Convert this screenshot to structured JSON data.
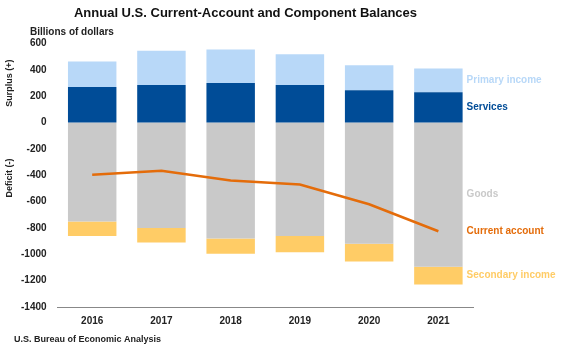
{
  "chart_data": {
    "type": "bar",
    "title": "Annual U.S. Current-Account and Component Balances",
    "ylabel": "Billions of dollars",
    "annotations": [
      "Surplus (+)",
      "Deficit (-)",
      "U.S. Bureau of Economic Analysis"
    ],
    "categories": [
      "2016",
      "2017",
      "2018",
      "2019",
      "2020",
      "2021"
    ],
    "series": [
      {
        "name": "Services",
        "color": "#004c97",
        "values": [
          270,
          285,
          300,
          285,
          245,
          230
        ]
      },
      {
        "name": "Primary income",
        "color": "#b8d8f8",
        "values": [
          195,
          260,
          255,
          235,
          190,
          180
        ]
      },
      {
        "name": "Goods",
        "color": "#c9c9c9",
        "values": [
          -750,
          -800,
          -880,
          -860,
          -920,
          -1095
        ]
      },
      {
        "name": "Secondary income",
        "color": "#ffcc66",
        "values": [
          -110,
          -110,
          -115,
          -125,
          -135,
          -135
        ]
      },
      {
        "name": "Current account",
        "type": "line",
        "color": "#e46c0a",
        "values": [
          -395,
          -365,
          -440,
          -470,
          -620,
          -825
        ]
      }
    ],
    "stacked": true,
    "grid": false,
    "ylim": [
      -1400,
      600
    ],
    "yticks": [
      -1400,
      -1200,
      -1000,
      -800,
      -600,
      -400,
      -200,
      0,
      200,
      400,
      600
    ]
  }
}
